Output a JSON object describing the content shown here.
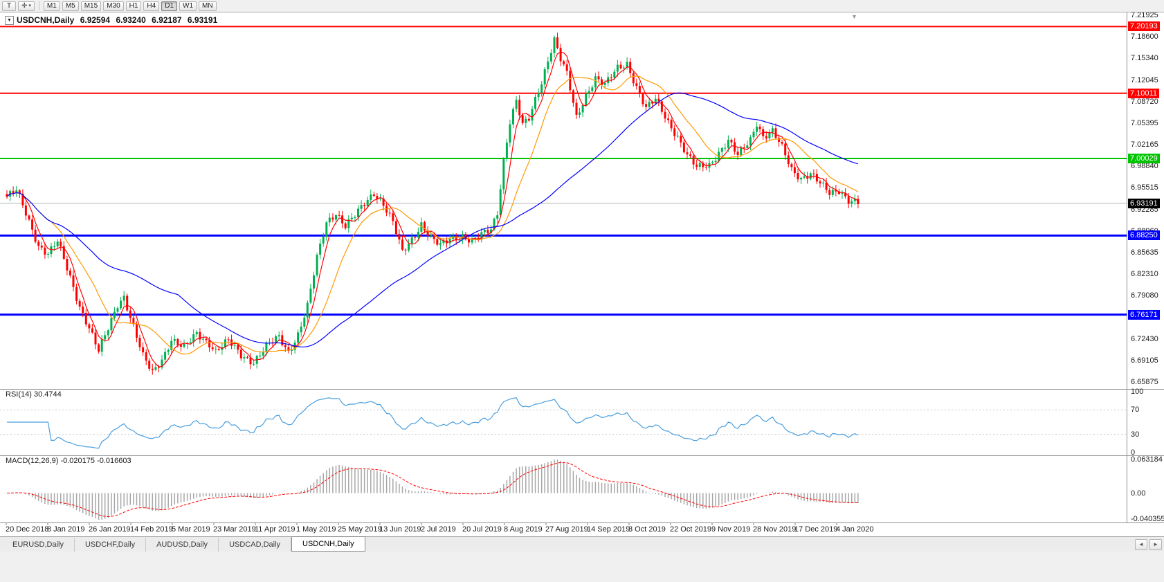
{
  "toolbar": {
    "text_tool_label": "T",
    "crosshair_glyph": "✛",
    "dropdown_glyph": "▾",
    "timeframes": [
      "M1",
      "M5",
      "M15",
      "M30",
      "H1",
      "H4",
      "D1",
      "W1",
      "MN"
    ],
    "active_timeframe": "D1"
  },
  "chart": {
    "collapse_arrow": "▼",
    "shift_marker": "▼",
    "symbol_title": "USDCNH,Daily",
    "ohlc": {
      "open": "6.92594",
      "high": "6.93240",
      "low": "6.92187",
      "close": "6.93191"
    },
    "price_axis_labels": [
      "7.21925",
      "7.18600",
      "7.15340",
      "7.12045",
      "7.08720",
      "7.05395",
      "7.02165",
      "6.98840",
      "6.95515",
      "6.92285",
      "6.88960",
      "6.85635",
      "6.82310",
      "6.79080",
      "6.75755",
      "6.72430",
      "6.69105",
      "6.65875"
    ],
    "levels": [
      {
        "label": "7.20193",
        "price": 7.20193,
        "color": "#ff0000",
        "width": 2
      },
      {
        "label": "7.10011",
        "price": 7.10011,
        "color": "#ff0000",
        "width": 2
      },
      {
        "label": "7.00029",
        "price": 7.00029,
        "color": "#00c400",
        "width": 2
      },
      {
        "label": "6.88250",
        "price": 6.8825,
        "color": "#0000ff",
        "width": 3
      },
      {
        "label": "6.76171",
        "price": 6.76171,
        "color": "#0000ff",
        "width": 3
      }
    ],
    "current_price": {
      "label": "6.93191",
      "price": 6.93191,
      "line_color": "#b4b4b4",
      "badge_color": "#000000"
    },
    "colors": {
      "bull": "#00b050",
      "bear": "#ff0000",
      "ma_fast": "#ff0000",
      "ma_mid": "#ff9900",
      "ma_slow": "#0000ff",
      "rsi": "#4a9ede",
      "rsi_level": "#c8c8c8",
      "macd_hist": "#a6a6a6",
      "macd_signal": "#ff0000"
    }
  },
  "chart_data": {
    "type": "candlestick",
    "symbol": "USDCNH",
    "period": "Daily",
    "ylim": [
      6.65875,
      7.21925
    ],
    "n_candles": 270,
    "close_anchors": [
      [
        0,
        6.942
      ],
      [
        3,
        6.951
      ],
      [
        6,
        6.916
      ],
      [
        10,
        6.868
      ],
      [
        13,
        6.855
      ],
      [
        16,
        6.873
      ],
      [
        20,
        6.818
      ],
      [
        23,
        6.775
      ],
      [
        26,
        6.742
      ],
      [
        29,
        6.705
      ],
      [
        32,
        6.74
      ],
      [
        35,
        6.778
      ],
      [
        37,
        6.79
      ],
      [
        40,
        6.743
      ],
      [
        43,
        6.697
      ],
      [
        46,
        6.673
      ],
      [
        49,
        6.694
      ],
      [
        52,
        6.724
      ],
      [
        56,
        6.71
      ],
      [
        60,
        6.733
      ],
      [
        64,
        6.718
      ],
      [
        66,
        6.706
      ],
      [
        70,
        6.721
      ],
      [
        74,
        6.7
      ],
      [
        78,
        6.69
      ],
      [
        82,
        6.713
      ],
      [
        86,
        6.727
      ],
      [
        89,
        6.705
      ],
      [
        92,
        6.732
      ],
      [
        95,
        6.774
      ],
      [
        98,
        6.848
      ],
      [
        101,
        6.903
      ],
      [
        104,
        6.918
      ],
      [
        107,
        6.897
      ],
      [
        110,
        6.912
      ],
      [
        113,
        6.931
      ],
      [
        116,
        6.949
      ],
      [
        119,
        6.931
      ],
      [
        122,
        6.902
      ],
      [
        125,
        6.856
      ],
      [
        128,
        6.877
      ],
      [
        131,
        6.901
      ],
      [
        134,
        6.879
      ],
      [
        137,
        6.866
      ],
      [
        140,
        6.877
      ],
      [
        144,
        6.883
      ],
      [
        147,
        6.874
      ],
      [
        150,
        6.883
      ],
      [
        153,
        6.891
      ],
      [
        155,
        6.918
      ],
      [
        157,
        6.998
      ],
      [
        159,
        7.058
      ],
      [
        161,
        7.088
      ],
      [
        163,
        7.05
      ],
      [
        165,
        7.06
      ],
      [
        167,
        7.09
      ],
      [
        169,
        7.118
      ],
      [
        171,
        7.152
      ],
      [
        173,
        7.183
      ],
      [
        175,
        7.152
      ],
      [
        177,
        7.128
      ],
      [
        180,
        7.062
      ],
      [
        183,
        7.098
      ],
      [
        186,
        7.124
      ],
      [
        189,
        7.112
      ],
      [
        193,
        7.138
      ],
      [
        196,
        7.146
      ],
      [
        199,
        7.11
      ],
      [
        202,
        7.076
      ],
      [
        205,
        7.09
      ],
      [
        209,
        7.057
      ],
      [
        212,
        7.034
      ],
      [
        215,
        7.004
      ],
      [
        218,
        6.986
      ],
      [
        222,
        6.991
      ],
      [
        225,
        7.01
      ],
      [
        228,
        7.027
      ],
      [
        231,
        7.004
      ],
      [
        235,
        7.03
      ],
      [
        237,
        7.056
      ],
      [
        239,
        7.034
      ],
      [
        242,
        7.041
      ],
      [
        245,
        7.016
      ],
      [
        248,
        6.984
      ],
      [
        251,
        6.971
      ],
      [
        254,
        6.977
      ],
      [
        257,
        6.961
      ],
      [
        260,
        6.947
      ],
      [
        263,
        6.953
      ],
      [
        266,
        6.937
      ],
      [
        269,
        6.9319
      ]
    ],
    "x_labels": [
      "20 Dec 2018",
      "8 Jan 2019",
      "26 Jan 2019",
      "14 Feb 2019",
      "5 Mar 2019",
      "23 Mar 2019",
      "11 Apr 2019",
      "1 May 2019",
      "25 May 2019",
      "13 Jun 2019",
      "2 Jul 2019",
      "20 Jul 2019",
      "8 Aug 2019",
      "27 Aug 2019",
      "14 Sep 2019",
      "3 Oct 2019",
      "22 Oct 2019",
      "9 Nov 2019",
      "28 Nov 2019",
      "17 Dec 2019",
      "4 Jan 2020"
    ],
    "moving_averages": [
      {
        "period": 5,
        "color_key": "ma_fast"
      },
      {
        "period": 15,
        "color_key": "ma_mid"
      },
      {
        "period": 55,
        "color_key": "ma_slow"
      }
    ],
    "indicators": [
      {
        "name": "RSI",
        "params": "14",
        "current_value": "30.4744",
        "range": [
          0,
          100
        ],
        "guide_levels": [
          30,
          70
        ]
      },
      {
        "name": "MACD",
        "params": "12,26,9",
        "current_values": [
          "-0.020175",
          "-0.016603"
        ]
      }
    ]
  },
  "rsi_panel": {
    "label": "RSI(14) 30.4744",
    "axis_labels": [
      "100",
      "70",
      "30",
      "0"
    ],
    "axis_values": [
      100,
      70,
      30,
      0
    ]
  },
  "macd_panel": {
    "label": "MACD(12,26,9) -0.020175 -0.016603",
    "axis_top": "0.063184",
    "axis_zero": "0.00",
    "axis_bottom": "-0.040355"
  },
  "tabs": {
    "items": [
      {
        "label": "EURUSD,Daily",
        "active": false
      },
      {
        "label": "USDCHF,Daily",
        "active": false
      },
      {
        "label": "AUDUSD,Daily",
        "active": false
      },
      {
        "label": "USDCAD,Daily",
        "active": false
      },
      {
        "label": "USDCNH,Daily",
        "active": true
      }
    ],
    "scroll_left": "◄",
    "scroll_right": "►"
  }
}
